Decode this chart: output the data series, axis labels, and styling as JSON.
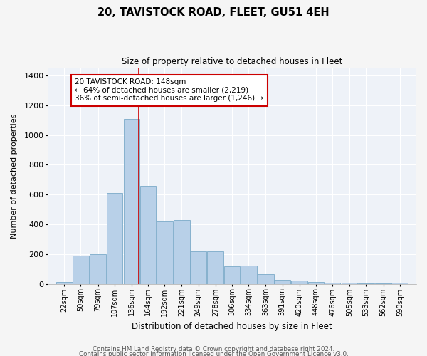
{
  "title": "20, TAVISTOCK ROAD, FLEET, GU51 4EH",
  "subtitle": "Size of property relative to detached houses in Fleet",
  "xlabel": "Distribution of detached houses by size in Fleet",
  "ylabel": "Number of detached properties",
  "bar_color": "#b8d0e8",
  "bar_edge_color": "#7aaac8",
  "background_color": "#eef2f8",
  "grid_color": "#ffffff",
  "annotation_line_color": "#cc0000",
  "annotation_box_color": "#cc0000",
  "annotation_text": "20 TAVISTOCK ROAD: 148sqm\n← 64% of detached houses are smaller (2,219)\n36% of semi-detached houses are larger (1,246) →",
  "categories": [
    "22sqm",
    "50sqm",
    "79sqm",
    "107sqm",
    "136sqm",
    "164sqm",
    "192sqm",
    "221sqm",
    "249sqm",
    "278sqm",
    "306sqm",
    "334sqm",
    "363sqm",
    "391sqm",
    "420sqm",
    "448sqm",
    "476sqm",
    "505sqm",
    "533sqm",
    "562sqm",
    "590sqm"
  ],
  "bin_left": [
    8,
    36,
    65,
    93,
    122,
    150,
    178,
    207,
    235,
    264,
    292,
    320,
    349,
    377,
    406,
    434,
    462,
    491,
    519,
    548,
    576
  ],
  "bin_width": 28,
  "values": [
    15,
    190,
    200,
    610,
    1110,
    660,
    420,
    430,
    220,
    220,
    120,
    125,
    65,
    28,
    25,
    15,
    10,
    8,
    5,
    5,
    10
  ],
  "property_line_x": 148,
  "ylim": [
    0,
    1450
  ],
  "yticks": [
    0,
    200,
    400,
    600,
    800,
    1000,
    1200,
    1400
  ],
  "footer1": "Contains HM Land Registry data © Crown copyright and database right 2024.",
  "footer2": "Contains public sector information licensed under the Open Government Licence v3.0."
}
